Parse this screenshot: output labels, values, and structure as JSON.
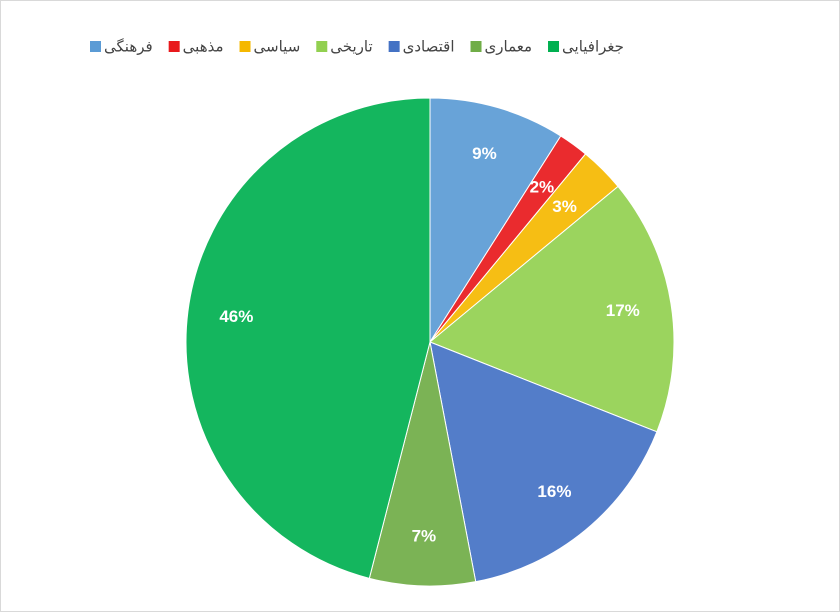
{
  "chart_data": {
    "type": "pie",
    "categories": [
      "فرهنگی",
      "مذهبی",
      "سیاسی",
      "تاریخی",
      "اقتصادی",
      "معماری",
      "جغرافیایی"
    ],
    "values": [
      9,
      2,
      3,
      17,
      16,
      7,
      46
    ],
    "value_labels": [
      "9%",
      "2%",
      "3%",
      "17%",
      "16%",
      "7%",
      "46%"
    ],
    "colors": [
      "#5b9bd5",
      "#e8191c",
      "#f5b800",
      "#92d050",
      "#4472c4",
      "#70ad47",
      "#00b050"
    ],
    "legend": "top"
  }
}
